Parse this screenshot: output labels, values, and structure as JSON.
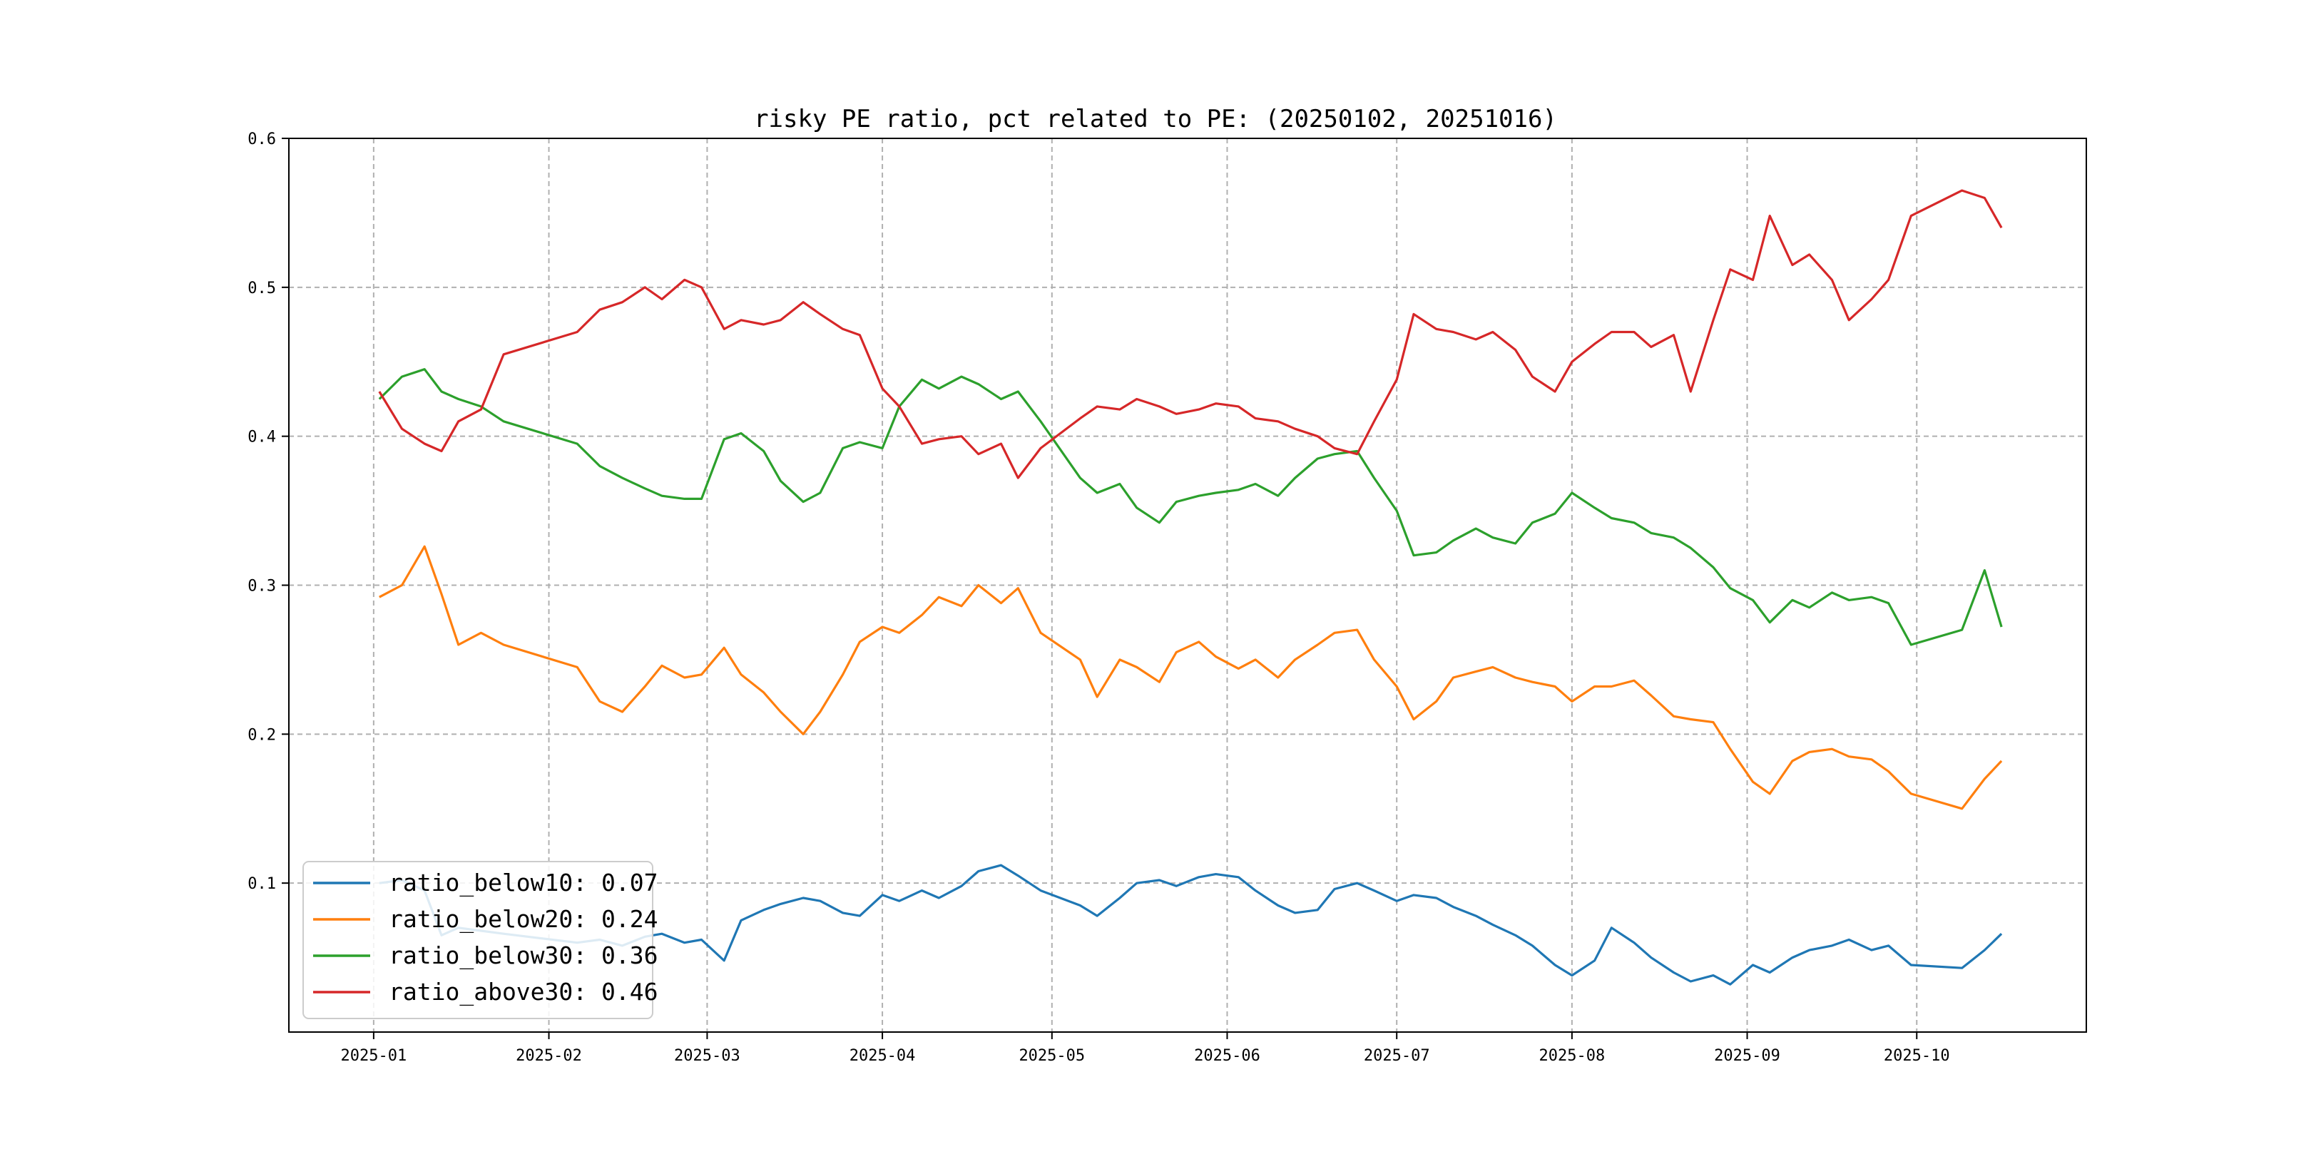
{
  "chart_data": {
    "type": "line",
    "title": "risky PE ratio, pct related to PE: (20250102, 20251016)",
    "xlabel": "",
    "ylabel": "",
    "xlim": [
      "2024-12-17",
      "2025-10-31"
    ],
    "ylim": [
      -0.0,
      0.6
    ],
    "grid": true,
    "legend_position": "lower-left",
    "x_ticks": [
      {
        "label": "2025-01",
        "date": "2025-01-01"
      },
      {
        "label": "2025-02",
        "date": "2025-02-01"
      },
      {
        "label": "2025-03",
        "date": "2025-03-01"
      },
      {
        "label": "2025-04",
        "date": "2025-04-01"
      },
      {
        "label": "2025-05",
        "date": "2025-05-01"
      },
      {
        "label": "2025-06",
        "date": "2025-06-01"
      },
      {
        "label": "2025-07",
        "date": "2025-07-01"
      },
      {
        "label": "2025-08",
        "date": "2025-08-01"
      },
      {
        "label": "2025-09",
        "date": "2025-09-01"
      },
      {
        "label": "2025-10",
        "date": "2025-10-01"
      }
    ],
    "y_ticks": [
      {
        "label": "0.1",
        "value": 0.1
      },
      {
        "label": "0.2",
        "value": 0.2
      },
      {
        "label": "0.3",
        "value": 0.3
      },
      {
        "label": "0.4",
        "value": 0.4
      },
      {
        "label": "0.5",
        "value": 0.5
      },
      {
        "label": "0.6",
        "value": 0.6
      }
    ],
    "x": [
      "2025-01-02",
      "2025-01-06",
      "2025-01-10",
      "2025-01-13",
      "2025-01-16",
      "2025-01-20",
      "2025-01-24",
      "2025-02-06",
      "2025-02-10",
      "2025-02-14",
      "2025-02-18",
      "2025-02-21",
      "2025-02-25",
      "2025-02-28",
      "2025-03-04",
      "2025-03-07",
      "2025-03-11",
      "2025-03-14",
      "2025-03-18",
      "2025-03-21",
      "2025-03-25",
      "2025-03-28",
      "2025-04-01",
      "2025-04-04",
      "2025-04-08",
      "2025-04-11",
      "2025-04-15",
      "2025-04-18",
      "2025-04-22",
      "2025-04-25",
      "2025-04-29",
      "2025-05-06",
      "2025-05-09",
      "2025-05-13",
      "2025-05-16",
      "2025-05-20",
      "2025-05-23",
      "2025-05-27",
      "2025-05-30",
      "2025-06-03",
      "2025-06-06",
      "2025-06-10",
      "2025-06-13",
      "2025-06-17",
      "2025-06-20",
      "2025-06-24",
      "2025-06-27",
      "2025-07-01",
      "2025-07-04",
      "2025-07-08",
      "2025-07-11",
      "2025-07-15",
      "2025-07-18",
      "2025-07-22",
      "2025-07-25",
      "2025-07-29",
      "2025-08-01",
      "2025-08-05",
      "2025-08-08",
      "2025-08-12",
      "2025-08-15",
      "2025-08-19",
      "2025-08-22",
      "2025-08-26",
      "2025-08-29",
      "2025-09-02",
      "2025-09-05",
      "2025-09-09",
      "2025-09-12",
      "2025-09-16",
      "2025-09-19",
      "2025-09-23",
      "2025-09-26",
      "2025-09-30",
      "2025-10-09",
      "2025-10-13",
      "2025-10-16"
    ],
    "series": [
      {
        "name": "ratio_below10",
        "legend": "ratio_below10: 0.07",
        "color": "#1f77b4",
        "values": [
          0.1,
          0.102,
          0.095,
          0.065,
          0.07,
          0.068,
          0.066,
          0.06,
          0.062,
          0.058,
          0.064,
          0.066,
          0.06,
          0.062,
          0.048,
          0.075,
          0.082,
          0.086,
          0.09,
          0.088,
          0.08,
          0.078,
          0.092,
          0.088,
          0.095,
          0.09,
          0.098,
          0.108,
          0.112,
          0.105,
          0.095,
          0.085,
          0.078,
          0.09,
          0.1,
          0.102,
          0.098,
          0.104,
          0.106,
          0.104,
          0.095,
          0.085,
          0.08,
          0.082,
          0.096,
          0.1,
          0.095,
          0.088,
          0.092,
          0.09,
          0.084,
          0.078,
          0.072,
          0.065,
          0.058,
          0.045,
          0.038,
          0.048,
          0.07,
          0.06,
          0.05,
          0.04,
          0.034,
          0.038,
          0.032,
          0.045,
          0.04,
          0.05,
          0.055,
          0.058,
          0.062,
          0.055,
          0.058,
          0.045,
          0.043,
          0.055,
          0.066
        ]
      },
      {
        "name": "ratio_below20",
        "legend": "ratio_below20: 0.24",
        "color": "#ff7f0e",
        "values": [
          0.292,
          0.3,
          0.326,
          0.294,
          0.26,
          0.268,
          0.26,
          0.245,
          0.222,
          0.215,
          0.232,
          0.246,
          0.238,
          0.24,
          0.258,
          0.24,
          0.228,
          0.215,
          0.2,
          0.215,
          0.24,
          0.262,
          0.272,
          0.268,
          0.28,
          0.292,
          0.286,
          0.3,
          0.288,
          0.298,
          0.268,
          0.25,
          0.225,
          0.25,
          0.245,
          0.235,
          0.255,
          0.262,
          0.252,
          0.244,
          0.25,
          0.238,
          0.25,
          0.26,
          0.268,
          0.27,
          0.25,
          0.232,
          0.21,
          0.222,
          0.238,
          0.242,
          0.245,
          0.238,
          0.235,
          0.232,
          0.222,
          0.232,
          0.232,
          0.236,
          0.226,
          0.212,
          0.21,
          0.208,
          0.19,
          0.168,
          0.16,
          0.182,
          0.188,
          0.19,
          0.185,
          0.183,
          0.175,
          0.16,
          0.15,
          0.17,
          0.182
        ]
      },
      {
        "name": "ratio_below30",
        "legend": "ratio_below30: 0.36",
        "color": "#2ca02c",
        "values": [
          0.425,
          0.44,
          0.445,
          0.43,
          0.425,
          0.42,
          0.41,
          0.395,
          0.38,
          0.372,
          0.365,
          0.36,
          0.358,
          0.358,
          0.398,
          0.402,
          0.39,
          0.37,
          0.356,
          0.362,
          0.392,
          0.396,
          0.392,
          0.42,
          0.438,
          0.432,
          0.44,
          0.435,
          0.425,
          0.43,
          0.41,
          0.372,
          0.362,
          0.368,
          0.352,
          0.342,
          0.356,
          0.36,
          0.362,
          0.364,
          0.368,
          0.36,
          0.372,
          0.385,
          0.388,
          0.39,
          0.372,
          0.35,
          0.32,
          0.322,
          0.33,
          0.338,
          0.332,
          0.328,
          0.342,
          0.348,
          0.362,
          0.352,
          0.345,
          0.342,
          0.335,
          0.332,
          0.325,
          0.312,
          0.298,
          0.29,
          0.275,
          0.29,
          0.285,
          0.295,
          0.29,
          0.292,
          0.288,
          0.26,
          0.27,
          0.31,
          0.272
        ]
      },
      {
        "name": "ratio_above30",
        "legend": "ratio_above30: 0.46",
        "color": "#d62728",
        "values": [
          0.43,
          0.405,
          0.395,
          0.39,
          0.41,
          0.418,
          0.455,
          0.47,
          0.485,
          0.49,
          0.5,
          0.492,
          0.505,
          0.5,
          0.472,
          0.478,
          0.475,
          0.478,
          0.49,
          0.482,
          0.472,
          0.468,
          0.432,
          0.42,
          0.395,
          0.398,
          0.4,
          0.388,
          0.395,
          0.372,
          0.392,
          0.412,
          0.42,
          0.418,
          0.425,
          0.42,
          0.415,
          0.418,
          0.422,
          0.42,
          0.412,
          0.41,
          0.405,
          0.4,
          0.392,
          0.388,
          0.41,
          0.438,
          0.482,
          0.472,
          0.47,
          0.465,
          0.47,
          0.458,
          0.44,
          0.43,
          0.45,
          0.462,
          0.47,
          0.47,
          0.46,
          0.468,
          0.43,
          0.478,
          0.512,
          0.505,
          0.548,
          0.515,
          0.522,
          0.505,
          0.478,
          0.492,
          0.505,
          0.548,
          0.565,
          0.56,
          0.54
        ]
      }
    ]
  }
}
